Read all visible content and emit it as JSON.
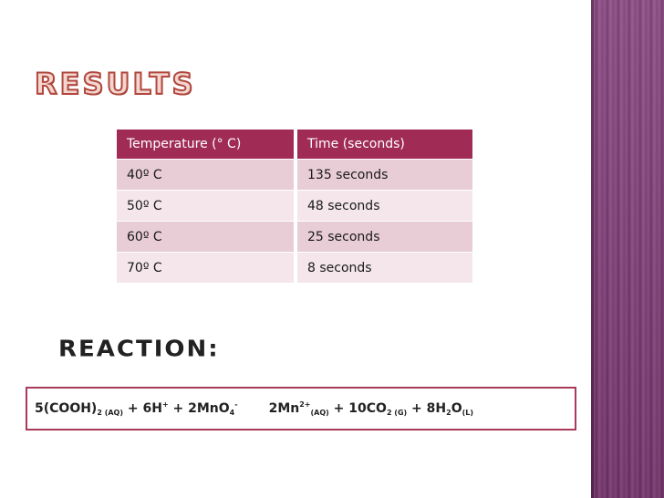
{
  "slide": {
    "title": "Results",
    "accent_color": "#a02c55",
    "band_color": "#7a3b71"
  },
  "table": {
    "headers": [
      "Temperature (° C)",
      "Time (seconds)"
    ],
    "rows": [
      [
        "40º C",
        "135 seconds"
      ],
      [
        "50º C",
        "48 seconds"
      ],
      [
        "60º C",
        "25 seconds"
      ],
      [
        "70º C",
        "8 seconds"
      ]
    ]
  },
  "reaction": {
    "heading": "Reaction:",
    "lhs": {
      "t1": "5(COOH)",
      "s1": "2 (AQ)",
      "t2": " + 6H",
      "p1": "+",
      "t3": " + 2MnO",
      "s2": "4",
      "p2": "-"
    },
    "rhs": {
      "t1": "2Mn",
      "p1": "2+",
      "s1": "(AQ)",
      "t2": " + 10CO",
      "s2": "2 (G)",
      "t3": " + 8H",
      "s3": "2",
      "t4": "O",
      "s4": "(L)"
    }
  }
}
